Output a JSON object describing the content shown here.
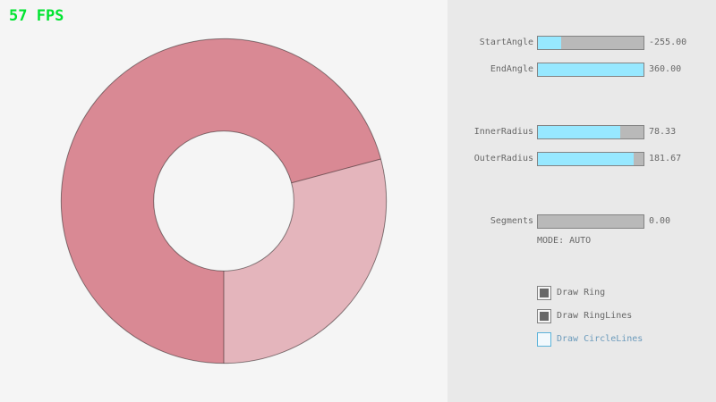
{
  "fps": "57 FPS",
  "colors": {
    "canvas_bg": "#f5f5f5",
    "panel_bg": "#e9e9e9",
    "fps_green": "#00e430",
    "ring_dark": "#d98994",
    "ring_light": "#e4b5bc",
    "ring_line": "rgba(0,0,0,0.45)",
    "slider_fill": "#97e8ff",
    "slider_track": "#b9b9b9",
    "slider_border": "#838383",
    "text_gray": "#686868",
    "focus_blue_border": "#5bb2d9",
    "focus_blue_text": "#6c9bbc"
  },
  "sliders": [
    {
      "label": "StartAngle",
      "value": "-255.00",
      "fill_pct": 21.7
    },
    {
      "label": "EndAngle",
      "value": "360.00",
      "fill_pct": 100
    },
    {
      "label": "InnerRadius",
      "value": "78.33",
      "fill_pct": 78.3
    },
    {
      "label": "OuterRadius",
      "value": "181.67",
      "fill_pct": 90.8
    },
    {
      "label": "Segments",
      "value": "0.00",
      "fill_pct": 0
    }
  ],
  "mode_text": "MODE: AUTO",
  "checkboxes": [
    {
      "label": "Draw Ring",
      "checked": true
    },
    {
      "label": "Draw RingLines",
      "checked": true
    },
    {
      "label": "Draw CircleLines",
      "checked": false
    }
  ],
  "ring": {
    "start_angle": -255.0,
    "end_angle": 360.0,
    "inner_radius": 78.33,
    "outer_radius": 181.67,
    "segments": 0,
    "mode": "AUTO"
  }
}
